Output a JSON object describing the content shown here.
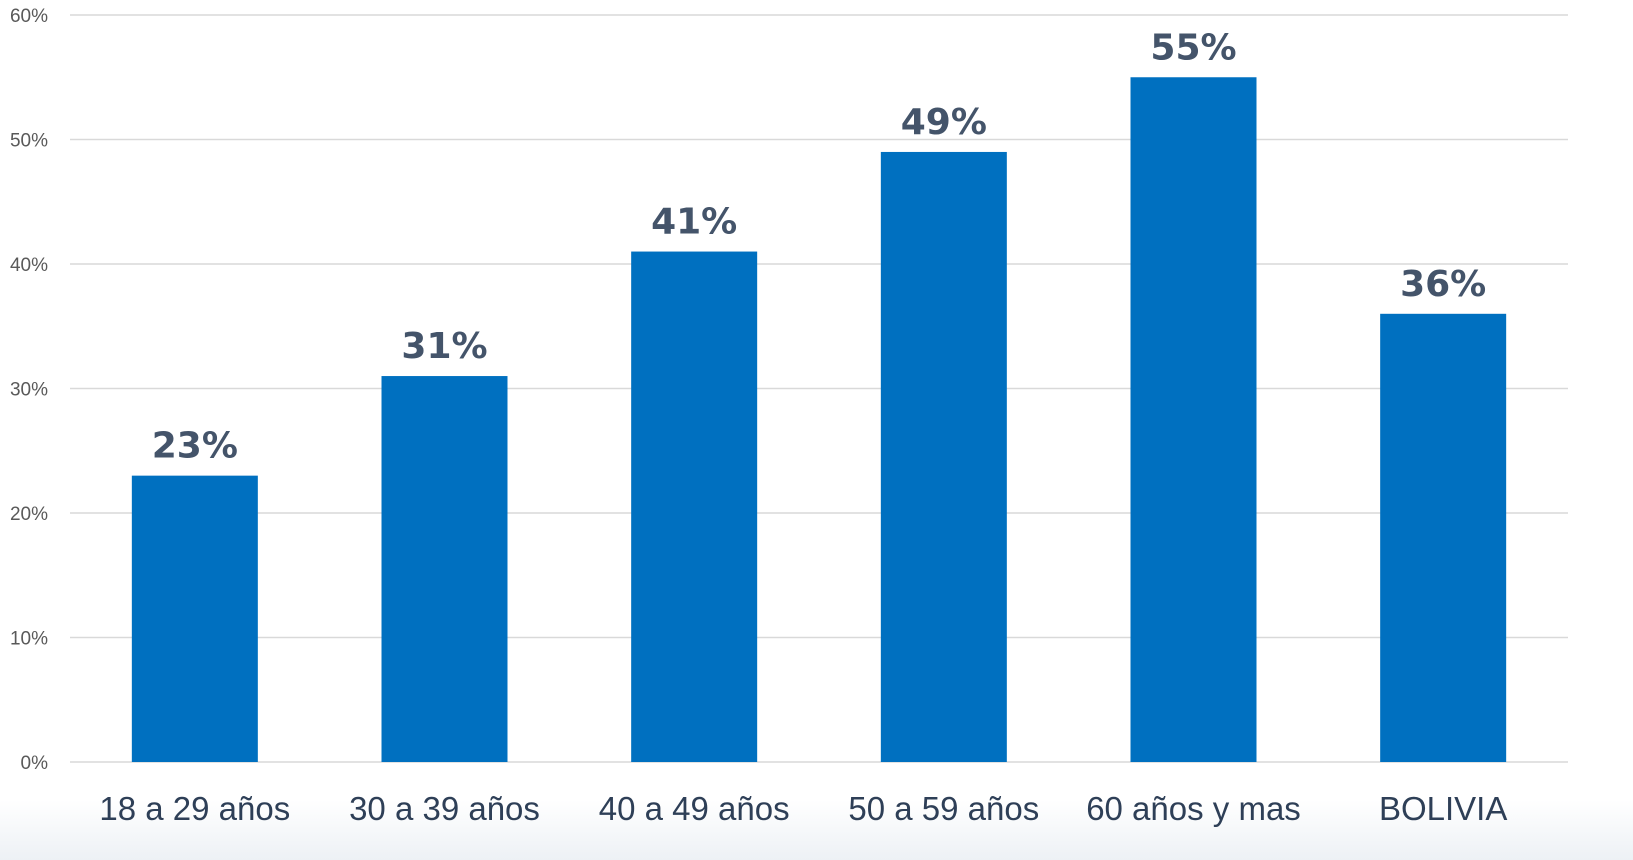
{
  "chart_data": {
    "type": "bar",
    "categories": [
      "18 a 29 años",
      "30 a 39 años",
      "40 a 49 años",
      "50 a 59 años",
      "60 años y mas",
      "BOLIVIA"
    ],
    "values": [
      23,
      31,
      41,
      49,
      55,
      36
    ],
    "value_unit": "%",
    "data_labels": [
      "23%",
      "31%",
      "41%",
      "49%",
      "55%",
      "36%"
    ],
    "y_ticks": [
      "0%",
      "10%",
      "20%",
      "30%",
      "40%",
      "50%",
      "60%"
    ],
    "ylim": [
      0,
      60
    ],
    "grid": true,
    "legend": "none",
    "colors": {
      "bar": "#0070c0",
      "data_label": "#44546a",
      "gridline": "#d9d9d9"
    }
  }
}
